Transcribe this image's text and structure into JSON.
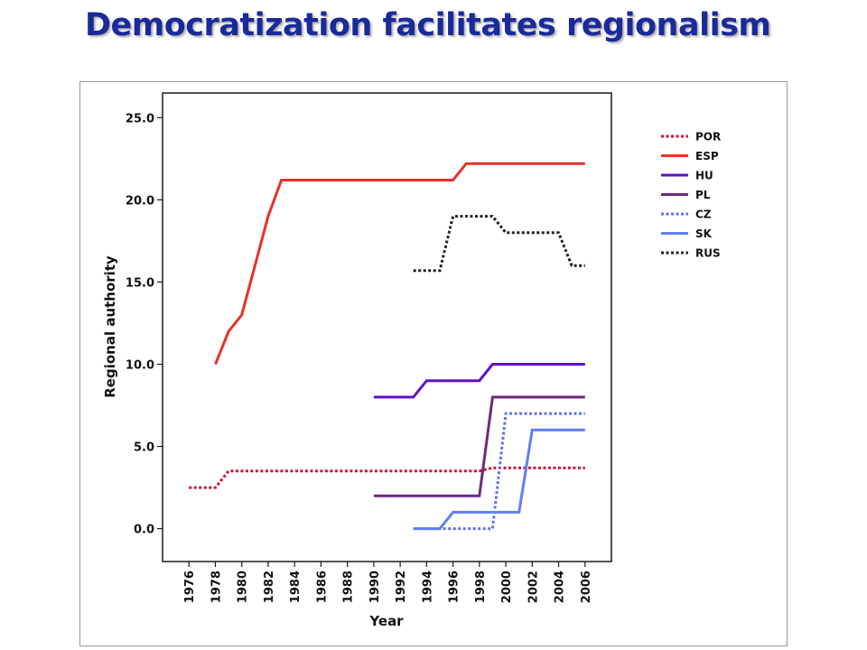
{
  "slide": {
    "title": "Democratization facilitates regionalism"
  },
  "chart_data": {
    "type": "line",
    "title": "",
    "xlabel": "Year",
    "ylabel": "Regional authority",
    "xlim": [
      1974,
      2008
    ],
    "ylim": [
      -2,
      26.5
    ],
    "x_ticks": [
      1976,
      1978,
      1980,
      1982,
      1984,
      1986,
      1988,
      1990,
      1992,
      1994,
      1996,
      1998,
      2000,
      2002,
      2004,
      2006
    ],
    "x_tick_labels": [
      "1976",
      "1978",
      "1980",
      "1982",
      "1984",
      "1986",
      "1988",
      "1990",
      "1992",
      "1994",
      "1996",
      "1998",
      "2000",
      "2002",
      "2004",
      "2006"
    ],
    "y_ticks": [
      0,
      5,
      10,
      15,
      20,
      25
    ],
    "y_tick_labels": [
      "0.0",
      "5.0",
      "10.0",
      "15.0",
      "20.0",
      "25.0"
    ],
    "grid": false,
    "legend_position": "right",
    "series": [
      {
        "name": "POR",
        "color": "#d0103a",
        "dash": "dotted",
        "points": [
          [
            1976,
            2.5
          ],
          [
            1978,
            2.5
          ],
          [
            1979,
            3.5
          ],
          [
            1998,
            3.5
          ],
          [
            1999,
            3.7
          ],
          [
            2006,
            3.7
          ]
        ]
      },
      {
        "name": "ESP",
        "color": "#e8302a",
        "dash": "solid",
        "points": [
          [
            1978,
            10
          ],
          [
            1979,
            12
          ],
          [
            1980,
            13
          ],
          [
            1981,
            16
          ],
          [
            1982,
            19
          ],
          [
            1983,
            21.2
          ],
          [
            1996,
            21.2
          ],
          [
            1997,
            22.2
          ],
          [
            2006,
            22.2
          ]
        ]
      },
      {
        "name": "HU",
        "color": "#6010c8",
        "dash": "solid",
        "points": [
          [
            1990,
            8
          ],
          [
            1993,
            8
          ],
          [
            1994,
            9
          ],
          [
            1998,
            9
          ],
          [
            1999,
            10
          ],
          [
            2006,
            10
          ]
        ]
      },
      {
        "name": "PL",
        "color": "#702880",
        "dash": "solid",
        "points": [
          [
            1990,
            2
          ],
          [
            1998,
            2
          ],
          [
            1999,
            8
          ],
          [
            2006,
            8
          ]
        ]
      },
      {
        "name": "CZ",
        "color": "#6070f0",
        "dash": "dotted",
        "points": [
          [
            1993,
            0
          ],
          [
            1999,
            0
          ],
          [
            2000,
            7
          ],
          [
            2006,
            7
          ]
        ]
      },
      {
        "name": "SK",
        "color": "#6080f0",
        "dash": "solid",
        "points": [
          [
            1993,
            0
          ],
          [
            1995,
            0
          ],
          [
            1996,
            1
          ],
          [
            2001,
            1
          ],
          [
            2002,
            6
          ],
          [
            2006,
            6
          ]
        ]
      },
      {
        "name": "RUS",
        "color": "#202020",
        "dash": "dotted",
        "points": [
          [
            1993,
            15.7
          ],
          [
            1995,
            15.7
          ],
          [
            1996,
            19
          ],
          [
            1999,
            19
          ],
          [
            2000,
            18
          ],
          [
            2004,
            18
          ],
          [
            2005,
            16
          ],
          [
            2006,
            16
          ]
        ]
      }
    ]
  }
}
